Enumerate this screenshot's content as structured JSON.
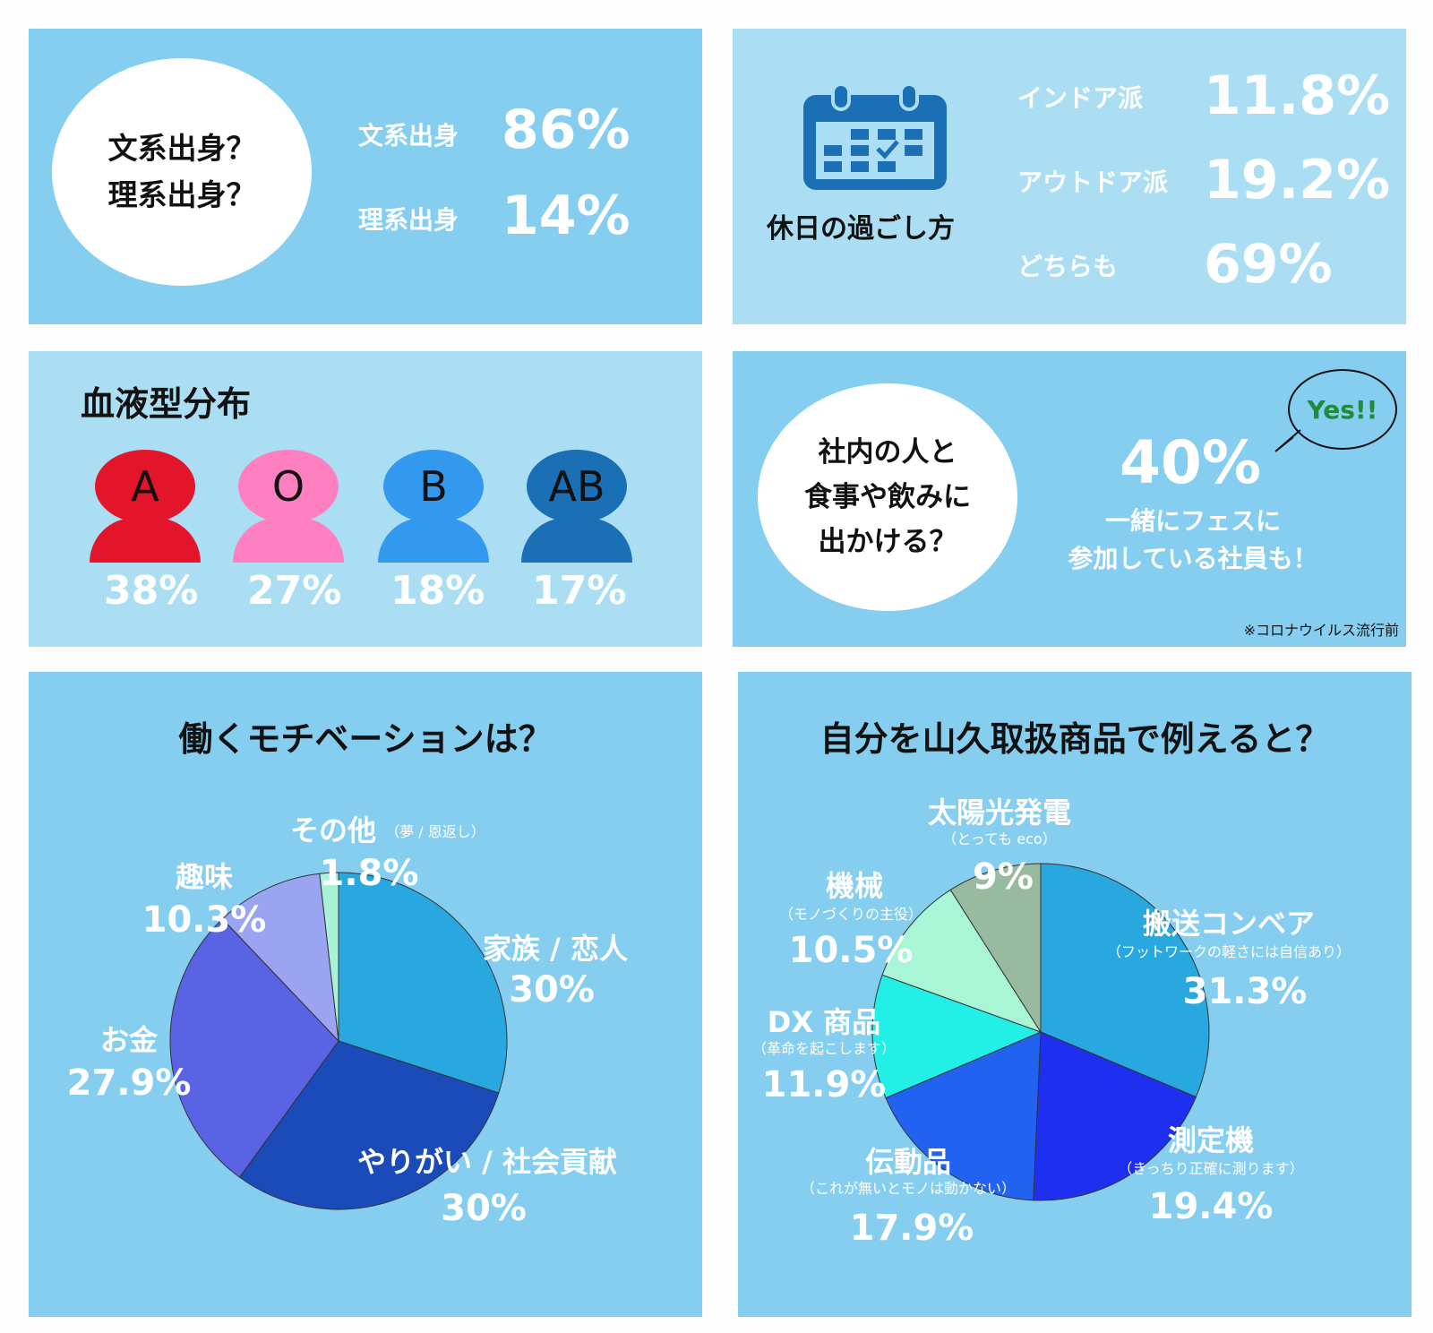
{
  "panel1": {
    "question": [
      "文系出身？",
      "理系出身？"
    ],
    "rows": [
      {
        "label": "文系出身",
        "value": "86%"
      },
      {
        "label": "理系出身",
        "value": "14%"
      }
    ]
  },
  "panel2": {
    "caption": "休日の過ごし方",
    "icon": "calendar-icon",
    "rows": [
      {
        "label": "インドア派",
        "value": "11.8%"
      },
      {
        "label": "アウトドア派",
        "value": "19.2%"
      },
      {
        "label": "どちらも",
        "value": "69%"
      }
    ]
  },
  "panel3": {
    "title": "血液型分布",
    "types": [
      {
        "letter": "A",
        "value": "38%",
        "color": "#e2152a"
      },
      {
        "letter": "O",
        "value": "27%",
        "color": "#ff80c0"
      },
      {
        "letter": "B",
        "value": "18%",
        "color": "#3399ee"
      },
      {
        "letter": "AB",
        "value": "17%",
        "color": "#1a6fb5"
      }
    ]
  },
  "panel4": {
    "question": [
      "社内の人と",
      "食事や飲みに",
      "出かける？"
    ],
    "bubble": "Yes!!",
    "value": "40%",
    "sub": [
      "一緒にフェスに",
      "参加している社員も！"
    ],
    "note": "※コロナウイルス流行前"
  },
  "chart_data": [
    {
      "type": "pie",
      "title": "働くモチベーションは？",
      "slices": [
        {
          "label": "家族 / 恋人",
          "note": "",
          "value": 30,
          "display": "30%",
          "color": "#29a8e0"
        },
        {
          "label": "やりがい / 社会貢献",
          "note": "",
          "value": 30,
          "display": "30%",
          "color": "#1b4bb8"
        },
        {
          "label": "お金",
          "note": "",
          "value": 27.9,
          "display": "27.9%",
          "color": "#5a63e3"
        },
        {
          "label": "趣味",
          "note": "",
          "value": 10.3,
          "display": "10.3%",
          "color": "#9ba4f0"
        },
        {
          "label": "その他",
          "note": "（夢 / 恩返し）",
          "value": 1.8,
          "display": "1.8%",
          "color": "#a9f2d6"
        }
      ]
    },
    {
      "type": "pie",
      "title": "自分を山久取扱商品で例えると？",
      "slices": [
        {
          "label": "搬送コンベア",
          "note": "（フットワークの軽さには自信あり）",
          "value": 31.3,
          "display": "31.3%",
          "color": "#29a8e0"
        },
        {
          "label": "測定機",
          "note": "（きっちり正確に測ります）",
          "value": 19.4,
          "display": "19.4%",
          "color": "#1e2ff0"
        },
        {
          "label": "伝動品",
          "note": "（これが無いとモノは動かない）",
          "value": 17.9,
          "display": "17.9%",
          "color": "#2262f0"
        },
        {
          "label": "DX 商品",
          "note": "（革命を起こします）",
          "value": 11.9,
          "display": "11.9%",
          "color": "#22f0e6"
        },
        {
          "label": "機械",
          "note": "（モノづくりの主役）",
          "value": 10.5,
          "display": "10.5%",
          "color": "#a8f6d6"
        },
        {
          "label": "太陽光発電",
          "note": "（とっても eco）",
          "value": 9,
          "display": "9%",
          "color": "#98bba0"
        }
      ]
    }
  ]
}
